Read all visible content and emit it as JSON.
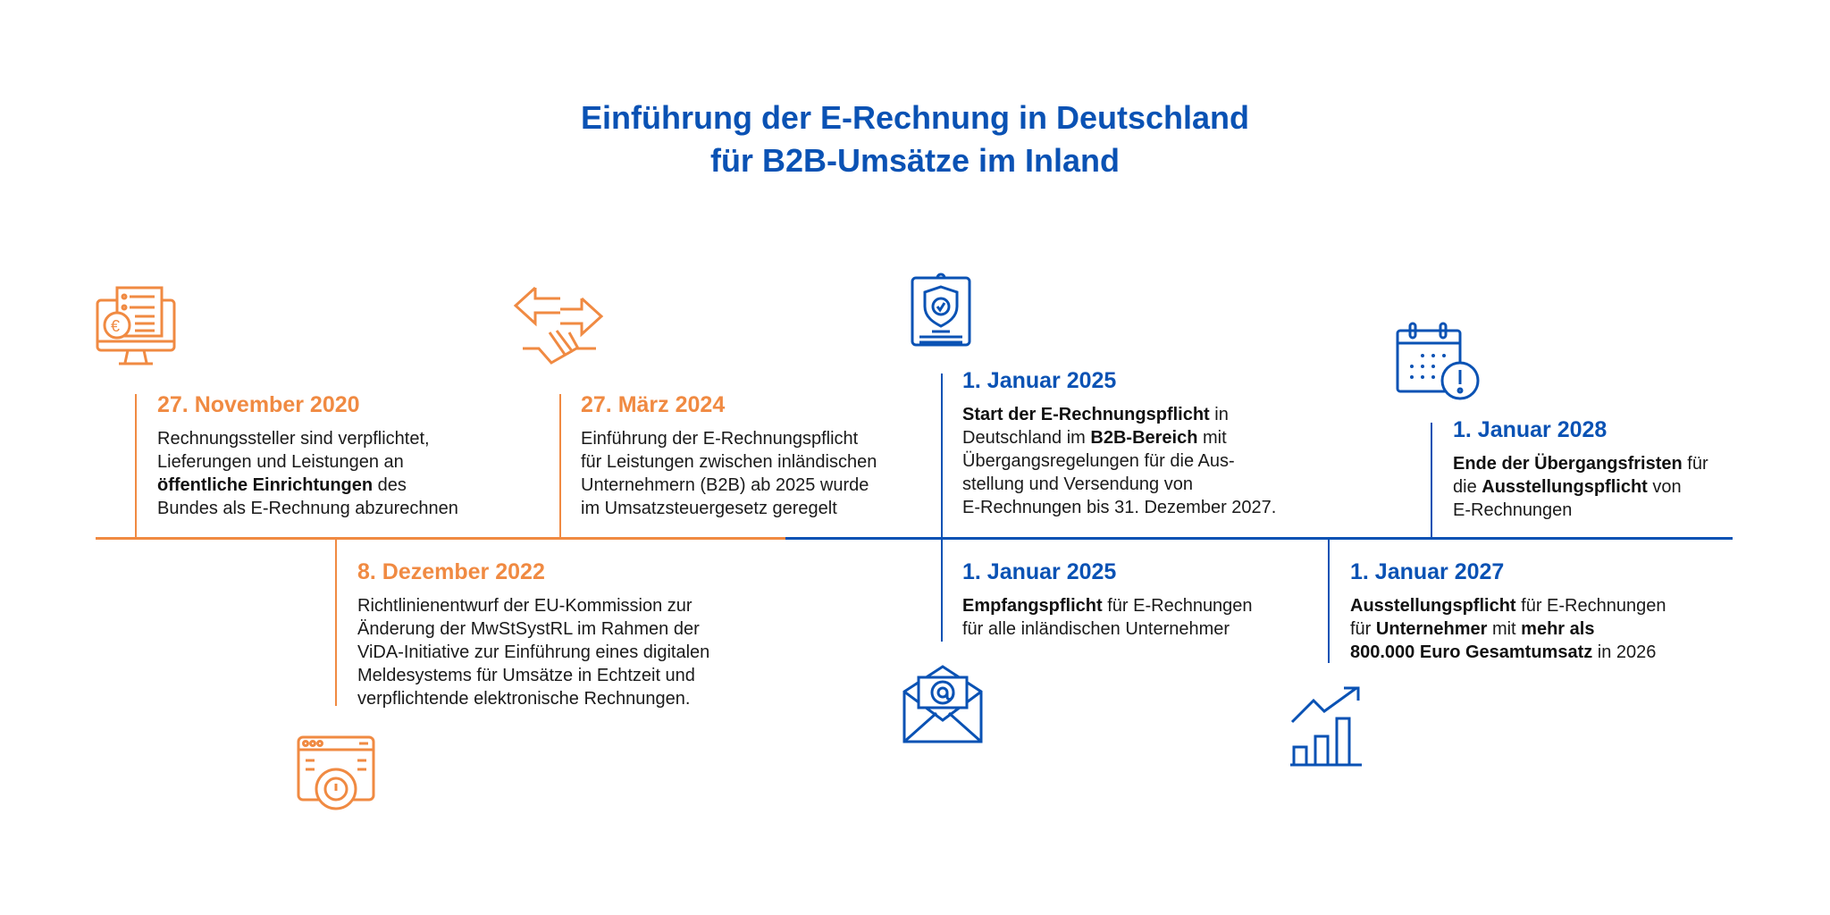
{
  "title": {
    "line1": "Einführung der E-Rechnung in Deutschland",
    "line2": "für B2B-Umsätze im Inland"
  },
  "colors": {
    "orange": "#f08a42",
    "blue": "#0a52b4",
    "text": "#1a1a1a"
  },
  "events": [
    {
      "date": "27. November 2020",
      "color": "orange",
      "icon": "monitor-euro-invoice-icon",
      "lines": [
        [
          {
            "t": "Rechnungssteller sind verpflichtet,",
            "b": false
          }
        ],
        [
          {
            "t": "Lieferungen und Leistungen an",
            "b": false
          }
        ],
        [
          {
            "t": "öffentliche Einrichtungen",
            "b": true
          },
          {
            "t": " des",
            "b": false
          }
        ],
        [
          {
            "t": "Bundes als E-Rechnung abzurechnen",
            "b": false
          }
        ]
      ]
    },
    {
      "date": "27. März 2024",
      "color": "orange",
      "icon": "handshake-arrows-icon",
      "lines": [
        [
          {
            "t": "Einführung der E-Rechnungspflicht",
            "b": false
          }
        ],
        [
          {
            "t": "für Leistungen zwischen inländischen",
            "b": false
          }
        ],
        [
          {
            "t": "Unternehmern (B2B) ab 2025 wurde",
            "b": false
          }
        ],
        [
          {
            "t": "im Umsatzsteuergesetz geregelt",
            "b": false
          }
        ]
      ]
    },
    {
      "date": "8. Dezember 2022",
      "color": "orange",
      "icon": "browser-gear-icon",
      "lines": [
        [
          {
            "t": "Richtlinienentwurf der EU-Kommission zur",
            "b": false
          }
        ],
        [
          {
            "t": "Änderung der MwStSystRL im Rahmen der",
            "b": false
          }
        ],
        [
          {
            "t": "ViDA-Initiative zur Einführung eines digitalen",
            "b": false
          }
        ],
        [
          {
            "t": "Meldesystems für Umsätze in Echtzeit und",
            "b": false
          }
        ],
        [
          {
            "t": "verpflichtende elektronische Rechnungen.",
            "b": false
          }
        ]
      ]
    },
    {
      "date": "1. Januar 2025",
      "color": "blue",
      "icon": "clipboard-shield-icon",
      "lines": [
        [
          {
            "t": "Start der E-Rechnungspflicht",
            "b": true
          },
          {
            "t": " in",
            "b": false
          }
        ],
        [
          {
            "t": "Deutschland im ",
            "b": false
          },
          {
            "t": "B2B-Bereich",
            "b": true
          },
          {
            "t": " mit",
            "b": false
          }
        ],
        [
          {
            "t": "Übergangsregelungen für die Aus-",
            "b": false
          }
        ],
        [
          {
            "t": "stellung und Versendung von",
            "b": false
          }
        ],
        [
          {
            "t": "E-Rechnungen bis 31. Dezember 2027.",
            "b": false
          }
        ]
      ]
    },
    {
      "date": "1. Januar 2025",
      "color": "blue",
      "icon": "envelope-at-icon",
      "lines": [
        [
          {
            "t": "Empfangspflicht",
            "b": true
          },
          {
            "t": " für E-Rechnungen",
            "b": false
          }
        ],
        [
          {
            "t": "für alle inländischen Unternehmer",
            "b": false
          }
        ]
      ]
    },
    {
      "date": "1. Januar 2027",
      "color": "blue",
      "icon": "growth-chart-icon",
      "lines": [
        [
          {
            "t": "Ausstellungspflicht",
            "b": true
          },
          {
            "t": " für E-Rechnungen",
            "b": false
          }
        ],
        [
          {
            "t": "für ",
            "b": false
          },
          {
            "t": "Unternehmer",
            "b": true
          },
          {
            "t": " mit ",
            "b": false
          },
          {
            "t": "mehr als",
            "b": true
          }
        ],
        [
          {
            "t": "800.000 Euro Gesamtumsatz",
            "b": true
          },
          {
            "t": " in 2026",
            "b": false
          }
        ]
      ]
    },
    {
      "date": "1. Januar 2028",
      "color": "blue",
      "icon": "calendar-alert-icon",
      "lines": [
        [
          {
            "t": "Ende der Übergangsfristen",
            "b": true
          },
          {
            "t": " für",
            "b": false
          }
        ],
        [
          {
            "t": "die ",
            "b": false
          },
          {
            "t": "Ausstellungspflicht",
            "b": true
          },
          {
            "t": " von",
            "b": false
          }
        ],
        [
          {
            "t": "E-Rechnungen",
            "b": false
          }
        ]
      ]
    }
  ]
}
